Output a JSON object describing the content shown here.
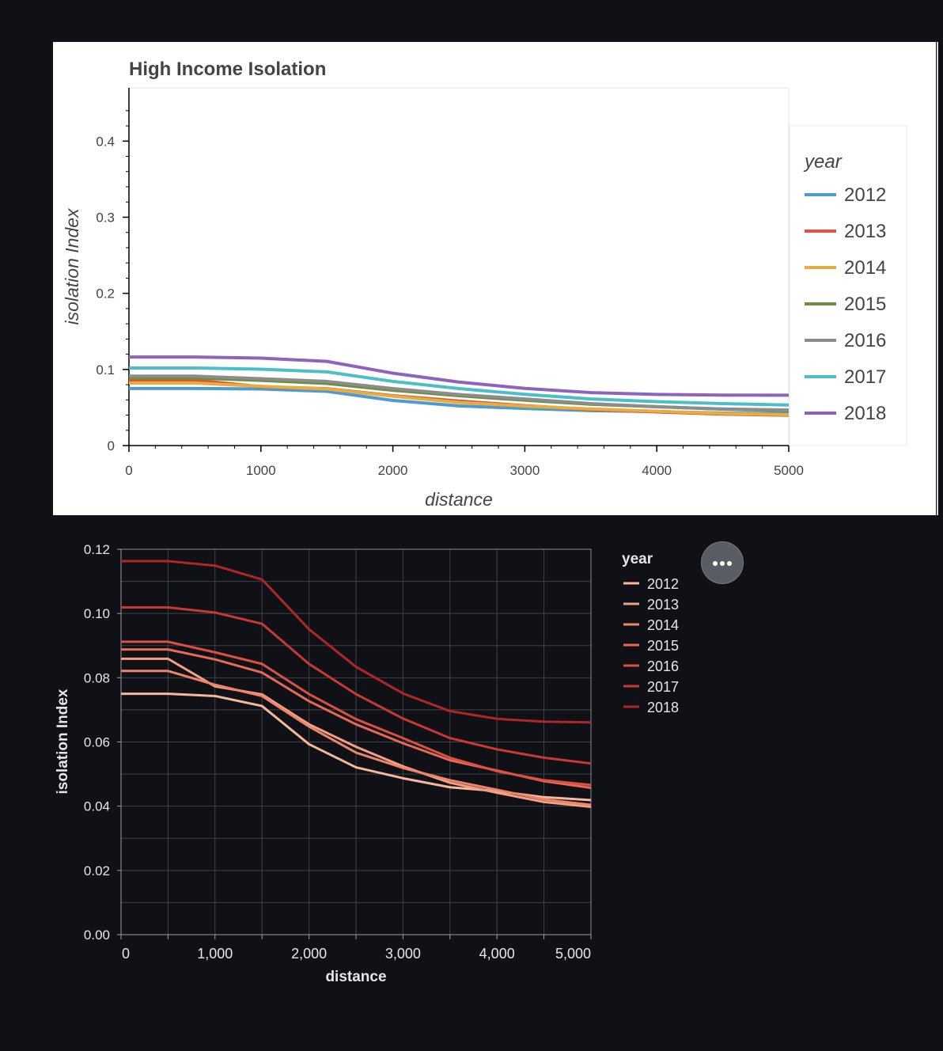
{
  "chart_data": [
    {
      "type": "line",
      "title": "High Income Isolation",
      "xlabel": "distance",
      "ylabel": "isolation Index",
      "xlim": [
        0,
        5000
      ],
      "ylim": [
        0,
        0.47
      ],
      "x_ticks": [
        "0",
        "1000",
        "2000",
        "3000",
        "4000",
        "5000"
      ],
      "y_ticks": [
        "0",
        "0.1",
        "0.2",
        "0.3",
        "0.4"
      ],
      "legend_title": "year",
      "x": [
        0,
        500,
        1000,
        1500,
        2000,
        2500,
        3000,
        3500,
        4000,
        4500,
        5000
      ],
      "series": [
        {
          "name": "2012",
          "color": "#4c9bd1",
          "values": [
            0.075,
            0.075,
            0.0743,
            0.0712,
            0.0593,
            0.0521,
            0.0487,
            0.0459,
            0.0447,
            0.0428,
            0.0419
          ]
        },
        {
          "name": "2013",
          "color": "#e2533b",
          "values": [
            0.0859,
            0.0859,
            0.0773,
            0.0748,
            0.0655,
            0.0585,
            0.0524,
            0.0473,
            0.0442,
            0.0413,
            0.0398
          ]
        },
        {
          "name": "2014",
          "color": "#e8ad3f",
          "values": [
            0.0821,
            0.0821,
            0.0778,
            0.0743,
            0.0648,
            0.0567,
            0.0519,
            0.0481,
            0.0451,
            0.0421,
            0.0404
          ]
        },
        {
          "name": "2015",
          "color": "#6a8f3f",
          "values": [
            0.0888,
            0.0888,
            0.0857,
            0.0816,
            0.0727,
            0.0655,
            0.0596,
            0.0543,
            0.0511,
            0.0478,
            0.0457
          ]
        },
        {
          "name": "2016",
          "color": "#8c8c8c",
          "values": [
            0.0912,
            0.0912,
            0.0879,
            0.0843,
            0.0749,
            0.0671,
            0.0612,
            0.0551,
            0.0509,
            0.0481,
            0.0466
          ]
        },
        {
          "name": "2017",
          "color": "#4cbfc6",
          "values": [
            0.1019,
            0.1019,
            0.1003,
            0.0968,
            0.0843,
            0.0749,
            0.0673,
            0.0612,
            0.0577,
            0.0551,
            0.0533
          ]
        },
        {
          "name": "2018",
          "color": "#8e63be",
          "values": [
            0.1163,
            0.1163,
            0.1149,
            0.1106,
            0.0951,
            0.0834,
            0.0751,
            0.0696,
            0.0672,
            0.0663,
            0.0661
          ]
        }
      ]
    },
    {
      "type": "line",
      "title": "",
      "xlabel": "distance",
      "ylabel": "isolation Index",
      "xlim": [
        0,
        5000
      ],
      "ylim": [
        0,
        0.12
      ],
      "x_ticks": [
        "0",
        "1,000",
        "2,000",
        "3,000",
        "4,000",
        "5,000"
      ],
      "y_ticks": [
        "0.00",
        "0.02",
        "0.04",
        "0.06",
        "0.08",
        "0.10",
        "0.12"
      ],
      "legend_title": "year",
      "x": [
        0,
        500,
        1000,
        1500,
        2000,
        2500,
        3000,
        3500,
        4000,
        4500,
        5000
      ],
      "series": [
        {
          "name": "2012",
          "color": "#f6b89b",
          "values": [
            0.075,
            0.075,
            0.0743,
            0.0712,
            0.0593,
            0.0521,
            0.0487,
            0.0459,
            0.0447,
            0.0428,
            0.0419
          ]
        },
        {
          "name": "2013",
          "color": "#f29f83",
          "values": [
            0.0859,
            0.0859,
            0.0773,
            0.0748,
            0.0655,
            0.0585,
            0.0524,
            0.0473,
            0.0442,
            0.0413,
            0.0398
          ]
        },
        {
          "name": "2014",
          "color": "#ee856b",
          "values": [
            0.0821,
            0.0821,
            0.0778,
            0.0743,
            0.0648,
            0.0567,
            0.0519,
            0.0481,
            0.0451,
            0.0421,
            0.0404
          ]
        },
        {
          "name": "2015",
          "color": "#e66a55",
          "values": [
            0.0888,
            0.0888,
            0.0857,
            0.0816,
            0.0727,
            0.0655,
            0.0596,
            0.0543,
            0.0511,
            0.0478,
            0.0457
          ]
        },
        {
          "name": "2016",
          "color": "#dc4f43",
          "values": [
            0.0912,
            0.0912,
            0.0879,
            0.0843,
            0.0749,
            0.0671,
            0.0612,
            0.0551,
            0.0509,
            0.0481,
            0.0466
          ]
        },
        {
          "name": "2017",
          "color": "#c93832",
          "values": [
            0.1019,
            0.1019,
            0.1003,
            0.0968,
            0.0843,
            0.0749,
            0.0673,
            0.0612,
            0.0577,
            0.0551,
            0.0533
          ]
        },
        {
          "name": "2018",
          "color": "#ae2626",
          "values": [
            0.1163,
            0.1163,
            0.1149,
            0.1106,
            0.0951,
            0.0834,
            0.0751,
            0.0696,
            0.0672,
            0.0663,
            0.0661
          ]
        }
      ]
    }
  ]
}
